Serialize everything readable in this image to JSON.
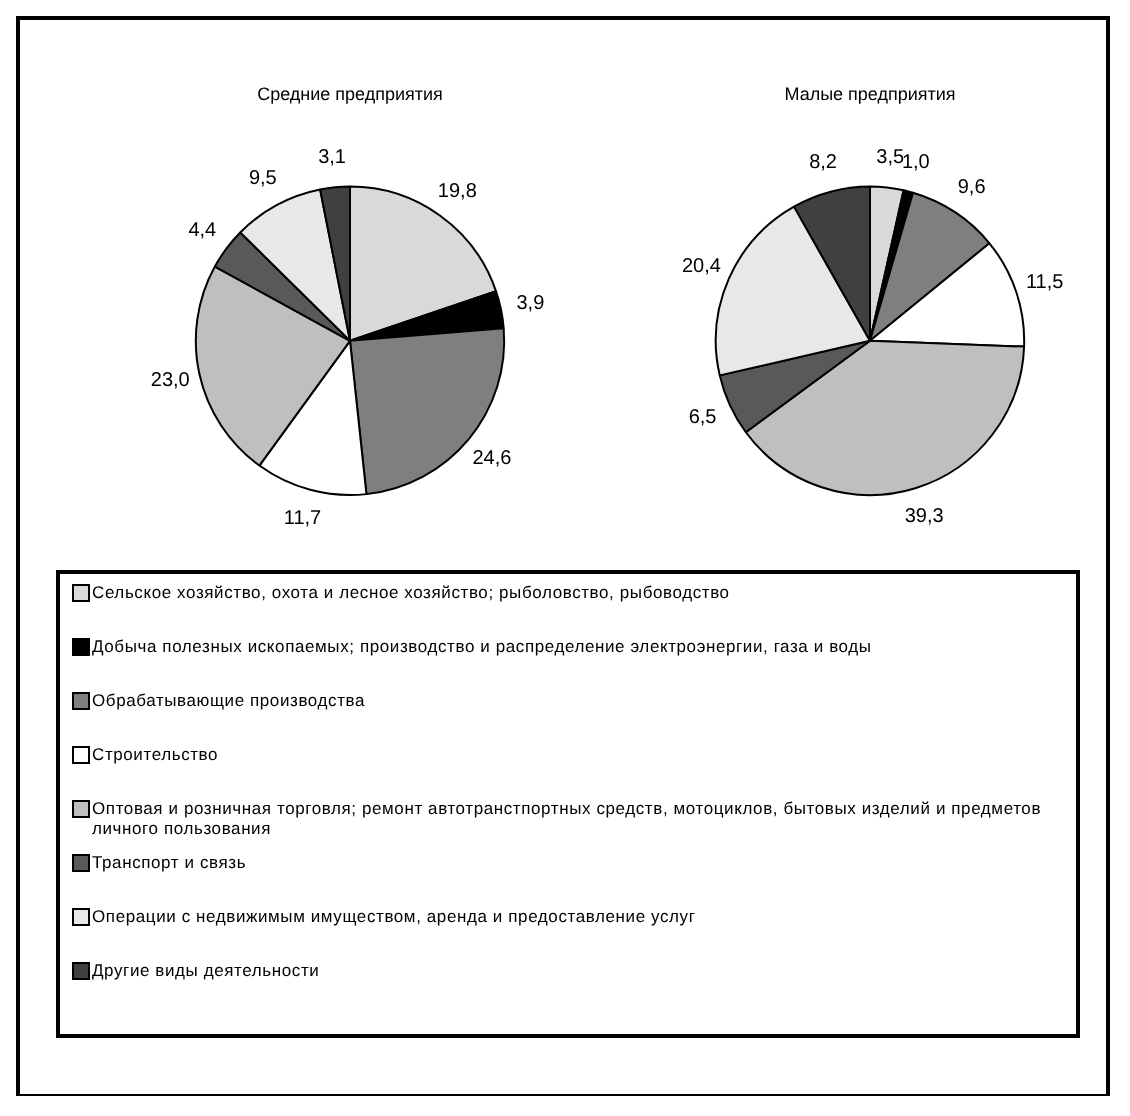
{
  "chart_data": [
    {
      "type": "pie",
      "title": "Средние предприятия",
      "categories": [
        "Сельское хозяйство, охота и лесное хозяйство; рыболовство, рыбоводство",
        "Добыча полезных ископаемых; производство и распределение электроэнергии, газа и воды",
        "Обрабатывающие производства",
        "Строительство",
        "Оптовая и розничная торговля; ремонт автотранстпортных средств, мотоциклов, бытовых изделий и предметов личного пользования",
        "Транспорт и связь",
        "Операции с недвижимым имуществом, аренда и предоставление услуг",
        "Другие виды деятельности"
      ],
      "values": [
        19.8,
        3.9,
        24.6,
        11.7,
        23.0,
        4.4,
        9.5,
        3.1
      ],
      "value_labels": [
        "19,8",
        "3,9",
        "24,6",
        "11,7",
        "23,0",
        "4,4",
        "9,5",
        "3,1"
      ],
      "colors": [
        "#d9d9d9",
        "#000000",
        "#7f7f7f",
        "#ffffff",
        "#bfbfbf",
        "#595959",
        "#e8e8e8",
        "#404040"
      ],
      "legend": "bottom"
    },
    {
      "type": "pie",
      "title": "Малые предприятия",
      "categories": [
        null,
        null,
        null,
        null,
        null,
        null,
        null,
        null
      ],
      "values": [
        3.5,
        1.0,
        9.6,
        11.5,
        39.3,
        6.5,
        20.4,
        8.2
      ],
      "value_labels": [
        "3,5",
        "1,0",
        "9,6",
        "11,5",
        "39,3",
        "6,5",
        "20,4",
        "8,2"
      ],
      "colors": [
        "#d9d9d9",
        "#000000",
        "#7f7f7f",
        "#ffffff",
        "#bfbfbf",
        "#595959",
        "#e8e8e8",
        "#404040"
      ]
    }
  ]
}
